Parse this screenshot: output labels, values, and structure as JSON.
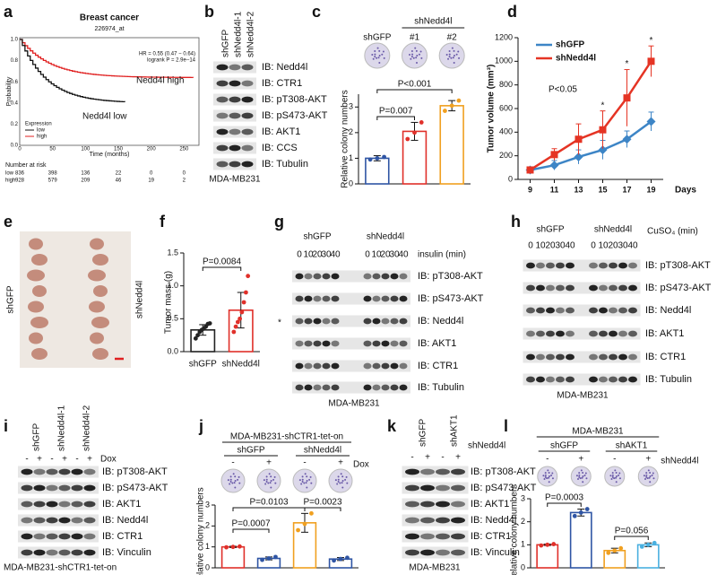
{
  "panel_labels": [
    "a",
    "b",
    "c",
    "d",
    "e",
    "f",
    "g",
    "h",
    "i",
    "j",
    "k",
    "l"
  ],
  "a": {
    "title": "Breast cancer",
    "probe": "226974_at",
    "hr": "HR = 0.55 (0.47 − 0.64)",
    "logrank": "logrank P = 2.9e−14",
    "high_label": "Nedd4l high",
    "low_label": "Nedd4l low",
    "ylabel": "Probability",
    "xlabel": "Time (months)",
    "xticks": [
      0,
      50,
      100,
      150,
      200,
      250
    ],
    "yticks": [
      "0.0",
      "0.2",
      "0.4",
      "0.6",
      "0.8",
      "1.0"
    ],
    "legend_title": "Expression",
    "legend": [
      "low",
      "high"
    ],
    "risk_title": "Number at risk",
    "risk": [
      {
        "name": "low",
        "counts": [
          836,
          398,
          136,
          22,
          0,
          0
        ]
      },
      {
        "name": "high",
        "counts": [
          928,
          579,
          209,
          46,
          19,
          2
        ]
      }
    ]
  },
  "b": {
    "lanes": [
      "shGFP",
      "shNedd4l-1",
      "shNedd4l-2"
    ],
    "rows": [
      "IB: Nedd4l",
      "IB: CTR1",
      "IB: pT308-AKT",
      "IB: pS473-AKT",
      "IB: AKT1",
      "IB: CCS",
      "IB: Tubulin"
    ],
    "cell_line": "MDA-MB231"
  },
  "e": {
    "labels": [
      "shGFP",
      "shNedd4l"
    ]
  },
  "g": {
    "groups": [
      "shGFP",
      "shNedd4l"
    ],
    "times": [
      0,
      10,
      20,
      30,
      40
    ],
    "unit": "insulin (min)",
    "rows": [
      "IB: pT308-AKT",
      "IB: pS473-AKT",
      "IB: Nedd4l",
      "IB: AKT1",
      "IB: CTR1",
      "IB: Tubulin"
    ],
    "marker": "*",
    "cell_line": "MDA-MB231"
  },
  "h": {
    "groups": [
      "shGFP",
      "shNedd4l"
    ],
    "times": [
      0,
      10,
      20,
      30,
      40
    ],
    "unit": "CuSO₄ (min)",
    "rows": [
      "IB: pT308-AKT",
      "IB: pS473-AKT",
      "IB: Nedd4l",
      "IB: AKT1",
      "IB: CTR1",
      "IB: Tubulin"
    ],
    "cell_line": "MDA-MB231"
  },
  "i": {
    "lanes": [
      "shGFP",
      "shNedd4l-1",
      "shNedd4l-2"
    ],
    "signs": [
      "-",
      "+"
    ],
    "treatment": "Dox",
    "rows": [
      "IB: pT308-AKT",
      "IB: pS473-AKT",
      "IB: AKT1",
      "IB: Nedd4l",
      "IB: CTR1",
      "IB: Vinculin"
    ],
    "cell_line": "MDA-MB231-shCTR1-tet-on"
  },
  "k": {
    "lanes": [
      "shGFP",
      "shAKT1"
    ],
    "signs": [
      "-",
      "+"
    ],
    "treatment": "shNedd4l",
    "rows": [
      "IB: pT308-AKT",
      "IB: pS473-AKT",
      "IB: AKT1",
      "IB: Nedd4l",
      "IB: CTR1",
      "IB: Vinculin"
    ],
    "cell_line": "MDA-MB231"
  },
  "chart_data": [
    {
      "type": "bar",
      "ylabel": "Relative colony numbers",
      "categories": [
        "shGFP",
        "#1",
        "#2"
      ],
      "group": "shNedd4l",
      "values": [
        1.0,
        2.05,
        3.05
      ],
      "errors": [
        0.1,
        0.35,
        0.2
      ],
      "points": [
        [
          0.95,
          1.0,
          1.05
        ],
        [
          1.75,
          2.0,
          2.4
        ],
        [
          2.85,
          3.05,
          3.25
        ]
      ],
      "colors": [
        "#2f55a4",
        "#e0302a",
        "#f0a020"
      ],
      "ylim": [
        0,
        3.5
      ],
      "yticks": [
        0,
        1,
        2,
        3
      ],
      "annotations": [
        "P=0.007",
        "P<0.001"
      ]
    },
    {
      "type": "line",
      "x": [
        9,
        11,
        13,
        15,
        17,
        19
      ],
      "xlim": [
        8,
        20
      ],
      "xticks": [
        9,
        11,
        13,
        15,
        17,
        19
      ],
      "ylim": [
        0,
        1200
      ],
      "yticks": [
        0,
        200,
        400,
        600,
        800,
        1000,
        1200
      ],
      "xlabel": "Days",
      "ylabel": "Tumor volume (mm³)",
      "series": [
        {
          "name": "shGFP",
          "color": "#3d85c6",
          "values": [
            80,
            120,
            190,
            250,
            340,
            490
          ],
          "errors": [
            10,
            40,
            60,
            80,
            70,
            80
          ]
        },
        {
          "name": "shNedd4l",
          "color": "#e53424",
          "values": [
            80,
            210,
            340,
            420,
            690,
            1000
          ],
          "errors": [
            10,
            50,
            130,
            160,
            240,
            130
          ]
        }
      ],
      "annotations": [
        "P<0.05"
      ],
      "star": "*",
      "star_at": [
        15,
        17,
        19
      ]
    },
    {
      "type": "bar",
      "ylabel": "Tumor mass (g)",
      "categories": [
        "shGFP",
        "shNedd4l"
      ],
      "values": [
        0.33,
        0.63
      ],
      "errors": [
        0.08,
        0.27
      ],
      "points": [
        [
          0.2,
          0.25,
          0.3,
          0.33,
          0.35,
          0.38,
          0.42,
          0.43
        ],
        [
          0.3,
          0.38,
          0.45,
          0.5,
          0.6,
          0.75,
          0.9,
          1.15
        ]
      ],
      "colors": [
        "#222222",
        "#e0302a"
      ],
      "ylim": [
        0,
        1.5
      ],
      "yticks": [
        {
          "value": 0,
          "label": "0.0"
        },
        {
          "value": 0.5,
          "label": "0.5"
        },
        {
          "value": 1,
          "label": "1.0"
        },
        {
          "value": 1.5,
          "label": "1.5"
        }
      ],
      "annotations": [
        "P=0.0084"
      ]
    },
    {
      "type": "bar",
      "title": "MDA-MB231-shCTR1-tet-on",
      "groups": [
        "shGFP",
        "shNedd4l"
      ],
      "signs": [
        "-",
        "+"
      ],
      "treatment": "Dox",
      "ylabel": "Relative colony numbers",
      "values": [
        1.0,
        0.45,
        2.15,
        0.42
      ],
      "errors": [
        0.03,
        0.07,
        0.45,
        0.07
      ],
      "points": [
        [
          0.98,
          1.0,
          1.02
        ],
        [
          0.38,
          0.45,
          0.52
        ],
        [
          1.8,
          2.1,
          2.6
        ],
        [
          0.35,
          0.42,
          0.48
        ]
      ],
      "colors": [
        "#e0302a",
        "#2f55a4",
        "#f0a020",
        "#2f55a4"
      ],
      "ylim": [
        0,
        3
      ],
      "yticks": [
        0,
        1,
        2,
        3
      ],
      "annotations": [
        "P=0.0007",
        "P=0.0103",
        "P=0.0023"
      ]
    },
    {
      "type": "bar",
      "title": "MDA-MB231",
      "groups": [
        "shGFP",
        "shAKT1"
      ],
      "signs": [
        "-",
        "+"
      ],
      "treatment": "shNedd4l",
      "ylabel": "Relative colony numbers",
      "values": [
        1.0,
        2.4,
        0.75,
        1.0
      ],
      "errors": [
        0.03,
        0.15,
        0.1,
        0.08
      ],
      "points": [
        [
          0.97,
          1.0,
          1.03
        ],
        [
          2.25,
          2.4,
          2.55
        ],
        [
          0.65,
          0.75,
          0.85
        ],
        [
          0.92,
          1.0,
          1.08
        ]
      ],
      "colors": [
        "#e0302a",
        "#2f55a4",
        "#f0a020",
        "#4ab0e0"
      ],
      "ylim": [
        0,
        3
      ],
      "yticks": [
        0,
        1,
        2,
        3
      ],
      "annotations": [
        "P=0.0003",
        "P=0.056"
      ]
    }
  ]
}
